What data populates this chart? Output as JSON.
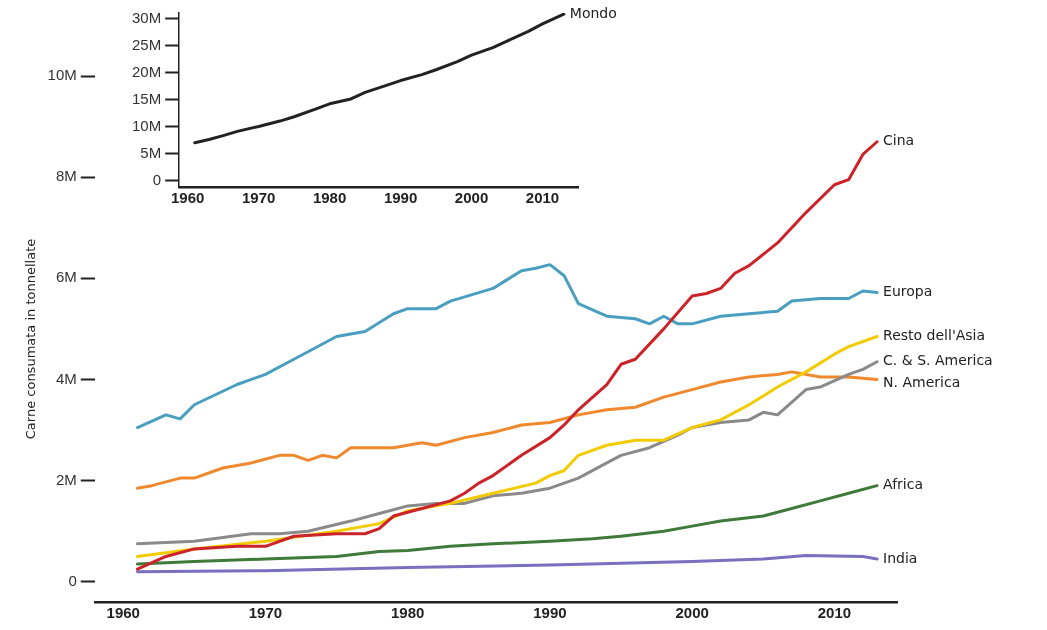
{
  "chart_data": [
    {
      "type": "line",
      "xlim": [
        1958.8,
        2015
      ],
      "ylim": [
        -1.2,
        31
      ],
      "xticks": [
        1960,
        1970,
        1980,
        1990,
        2000,
        2010
      ],
      "yticks": [
        0,
        {
          "value": 5,
          "label": "5M"
        },
        {
          "value": 10,
          "label": "10M"
        },
        {
          "value": 15,
          "label": "15M"
        },
        {
          "value": 20,
          "label": "20M"
        },
        {
          "value": 25,
          "label": "25M"
        },
        {
          "value": 30,
          "label": "30M"
        }
      ],
      "grid": false,
      "marker": "none",
      "line_style": "solid",
      "series": [
        {
          "name": "Mondo",
          "color": "#222222",
          "x": [
            1961,
            1963,
            1965,
            1967,
            1970,
            1973,
            1975,
            1978,
            1980,
            1983,
            1985,
            1988,
            1990,
            1993,
            1995,
            1998,
            2000,
            2003,
            2005,
            2008,
            2010,
            2013
          ],
          "values": [
            7,
            7.6,
            8.3,
            9.1,
            10,
            11,
            11.8,
            13.2,
            14.2,
            15.1,
            16.3,
            17.6,
            18.5,
            19.6,
            20.5,
            22.0,
            23.2,
            24.6,
            25.8,
            27.6,
            29,
            30.8
          ]
        }
      ]
    },
    {
      "type": "line",
      "ylabel": "Carne consumata in tonnellate",
      "xlim": [
        1958,
        2014.4
      ],
      "ylim": [
        -0.4,
        10
      ],
      "xticks": [
        1960,
        1970,
        1980,
        1990,
        2000,
        2010
      ],
      "yticks": [
        0,
        {
          "value": 2,
          "label": "2M"
        },
        {
          "value": 4,
          "label": "4M"
        },
        {
          "value": 6,
          "label": "6M"
        },
        {
          "value": 8,
          "label": "8M"
        },
        {
          "value": 10,
          "label": "10M"
        }
      ],
      "grid": false,
      "marker": "none",
      "line_style": "solid",
      "series": [
        {
          "name": "Cina",
          "color": "#cc2229",
          "x": [
            1961,
            1963,
            1965,
            1968,
            1970,
            1972,
            1975,
            1977,
            1978,
            1979,
            1981,
            1983,
            1984,
            1985,
            1986,
            1988,
            1990,
            1991,
            1992,
            1994,
            1995,
            1996,
            1998,
            2000,
            2001,
            2002,
            2003,
            2004,
            2006,
            2008,
            2010,
            2011,
            2012,
            2013
          ],
          "values": [
            0.25,
            0.5,
            0.65,
            0.7,
            0.7,
            0.9,
            0.95,
            0.95,
            1.05,
            1.3,
            1.45,
            1.6,
            1.75,
            1.95,
            2.1,
            2.5,
            2.85,
            3.1,
            3.4,
            3.9,
            4.3,
            4.4,
            5.0,
            5.65,
            5.7,
            5.8,
            6.1,
            6.25,
            6.7,
            7.3,
            7.85,
            7.95,
            8.45,
            8.7
          ]
        },
        {
          "name": "Europa",
          "color": "#4a9fc0",
          "x": [
            1961,
            1963,
            1964,
            1965,
            1968,
            1970,
            1972,
            1975,
            1977,
            1979,
            1980,
            1982,
            1983,
            1986,
            1988,
            1989,
            1990,
            1991,
            1992,
            1994,
            1996,
            1997,
            1998,
            1999,
            2000,
            2002,
            2004,
            2006,
            2007,
            2009,
            2011,
            2012,
            2013
          ],
          "values": [
            3.05,
            3.3,
            3.22,
            3.5,
            3.9,
            4.1,
            4.4,
            4.85,
            4.95,
            5.3,
            5.4,
            5.4,
            5.55,
            5.8,
            6.15,
            6.2,
            6.27,
            6.05,
            5.5,
            5.25,
            5.2,
            5.1,
            5.25,
            5.1,
            5.1,
            5.25,
            5.3,
            5.35,
            5.55,
            5.6,
            5.6,
            5.75,
            5.72
          ]
        },
        {
          "name": "Resto dell'Asia",
          "color": "#f2cc00",
          "x": [
            1961,
            1965,
            1970,
            1975,
            1978,
            1980,
            1983,
            1986,
            1989,
            1990,
            1991,
            1992,
            1994,
            1996,
            1998,
            2000,
            2002,
            2004,
            2006,
            2008,
            2010,
            2011,
            2013
          ],
          "values": [
            0.5,
            0.65,
            0.8,
            1.0,
            1.15,
            1.4,
            1.55,
            1.75,
            1.95,
            2.1,
            2.2,
            2.5,
            2.7,
            2.8,
            2.8,
            3.05,
            3.2,
            3.5,
            3.85,
            4.15,
            4.5,
            4.65,
            4.85
          ]
        },
        {
          "name": "C. & S. America",
          "color": "#8a8a8a",
          "x": [
            1961,
            1965,
            1969,
            1971,
            1973,
            1976,
            1978,
            1980,
            1982,
            1984,
            1986,
            1988,
            1990,
            1992,
            1994,
            1995,
            1997,
            1999,
            2000,
            2002,
            2004,
            2005,
            2006,
            2008,
            2009,
            2011,
            2012,
            2013
          ],
          "values": [
            0.75,
            0.8,
            0.95,
            0.95,
            1.0,
            1.2,
            1.35,
            1.5,
            1.55,
            1.55,
            1.7,
            1.75,
            1.85,
            2.05,
            2.35,
            2.5,
            2.65,
            2.9,
            3.05,
            3.15,
            3.2,
            3.35,
            3.3,
            3.8,
            3.85,
            4.1,
            4.2,
            4.35
          ]
        },
        {
          "name": "N. America",
          "color": "#f0892e",
          "x": [
            1961,
            1962,
            1964,
            1965,
            1967,
            1969,
            1971,
            1972,
            1973,
            1974,
            1975,
            1976,
            1979,
            1981,
            1982,
            1984,
            1986,
            1988,
            1990,
            1992,
            1994,
            1996,
            1998,
            2000,
            2002,
            2004,
            2006,
            2007,
            2009,
            2011,
            2013
          ],
          "values": [
            1.85,
            1.9,
            2.05,
            2.05,
            2.25,
            2.35,
            2.5,
            2.5,
            2.4,
            2.5,
            2.45,
            2.65,
            2.65,
            2.75,
            2.7,
            2.85,
            2.95,
            3.1,
            3.15,
            3.3,
            3.4,
            3.45,
            3.65,
            3.8,
            3.95,
            4.05,
            4.1,
            4.15,
            4.05,
            4.05,
            4.0
          ]
        },
        {
          "name": "Africa",
          "color": "#3f7a3a",
          "x": [
            1961,
            1965,
            1970,
            1975,
            1978,
            1980,
            1983,
            1986,
            1990,
            1993,
            1995,
            1998,
            2000,
            2002,
            2005,
            2007,
            2009,
            2011,
            2013
          ],
          "values": [
            0.35,
            0.4,
            0.45,
            0.5,
            0.6,
            0.62,
            0.7,
            0.75,
            0.8,
            0.85,
            0.9,
            1.0,
            1.1,
            1.2,
            1.3,
            1.45,
            1.6,
            1.75,
            1.9
          ]
        },
        {
          "name": "India",
          "color": "#7b6fbf",
          "x": [
            1961,
            1970,
            1980,
            1990,
            2000,
            2005,
            2008,
            2012,
            2013
          ],
          "values": [
            0.2,
            0.22,
            0.28,
            0.33,
            0.4,
            0.45,
            0.52,
            0.5,
            0.45
          ]
        }
      ]
    }
  ]
}
